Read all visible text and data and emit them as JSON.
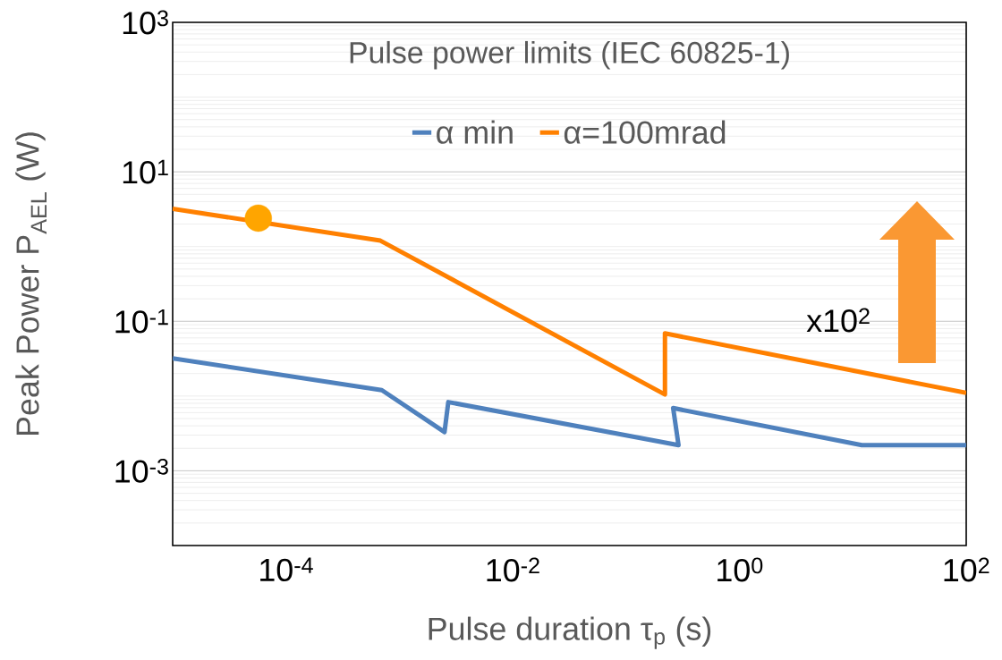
{
  "chart_data": {
    "type": "line",
    "title": "Pulse power limits (IEC 60825-1)",
    "xlabel": "Pulse duration τ$_{p}$ (s)",
    "ylabel": "Peak Power P$_{AEL}$ (W)",
    "log": "xy",
    "xlim": [
      1e-05,
      100
    ],
    "ylim": [
      0.0001,
      1000
    ],
    "xticks": [
      {
        "value": 0.0001,
        "label": "10$^{-4}$"
      },
      {
        "value": 0.01,
        "label": "10$^{-2}$"
      },
      {
        "value": 1,
        "label": "10$^{0}$"
      },
      {
        "value": 100,
        "label": "10$^{2}$"
      }
    ],
    "yticks": [
      {
        "value": 0.001,
        "label": "10$^{-3}$"
      },
      {
        "value": 0.1,
        "label": "10$^{-1}$"
      },
      {
        "value": 10,
        "label": "10$^{1}$"
      },
      {
        "value": 1000,
        "label": "10$^{3}$"
      }
    ],
    "grid": "y",
    "legend": "top",
    "series": [
      {
        "name": "α min",
        "color": "#4f81bd",
        "x": [
          1e-05,
          0.0007,
          0.0025,
          0.0027,
          0.29,
          0.26,
          12,
          100
        ],
        "values": [
          0.032,
          0.012,
          0.0033,
          0.0083,
          0.0022,
          0.0069,
          0.0022,
          0.0022
        ]
      },
      {
        "name": "α=100mrad",
        "color": "#ff8000",
        "x": [
          1e-05,
          0.00068,
          0.22,
          0.22,
          100
        ],
        "values": [
          3.2,
          1.2,
          0.0105,
          0.069,
          0.011
        ]
      },
      {
        "type": "scatter",
        "marker": "circle",
        "color": "#ffa500",
        "x": [
          5.7e-05
        ],
        "values": [
          2.4
        ]
      }
    ],
    "annotations": [
      "x10$^{2}$"
    ]
  }
}
